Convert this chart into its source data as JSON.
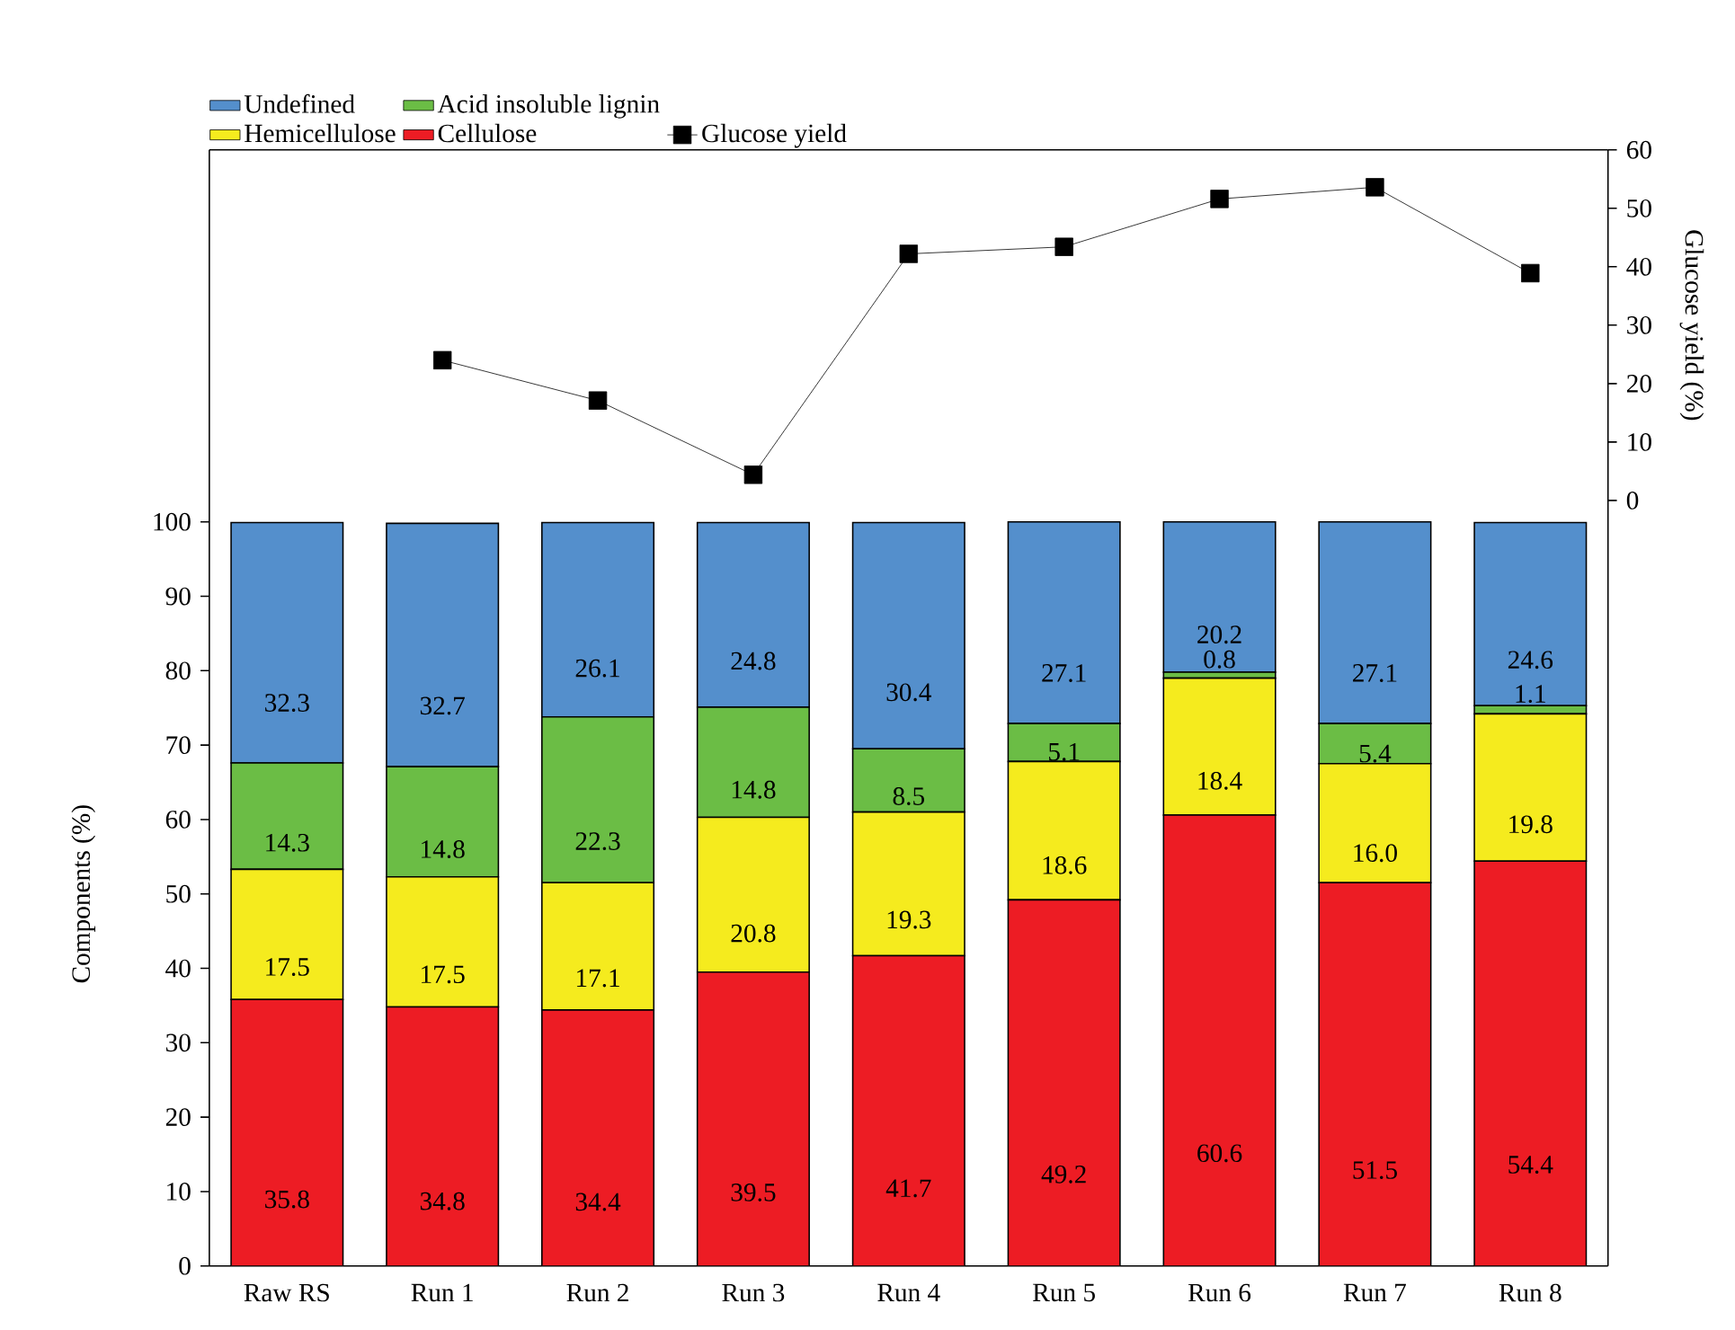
{
  "chart_data": {
    "type": "bar",
    "stacked": true,
    "legend": "top",
    "ylabel": "Components (%)",
    "y2label": "Glucose yield (%)",
    "categories": [
      "Raw RS",
      "Run 1",
      "Run 2",
      "Run 3",
      "Run 4",
      "Run 5",
      "Run 6",
      "Run 7",
      "Run 8"
    ],
    "ylim": [
      0,
      150
    ],
    "yticks": [
      0,
      10,
      20,
      30,
      40,
      50,
      60,
      70,
      80,
      90,
      100
    ],
    "y2lim": [
      -131,
      60
    ],
    "y2ticks": [
      0,
      10,
      20,
      30,
      40,
      50,
      60
    ],
    "series": [
      {
        "name": "Cellulose",
        "color": "#ed1c24",
        "values": [
          35.8,
          34.8,
          34.4,
          39.5,
          41.7,
          49.2,
          60.6,
          51.5,
          54.4
        ],
        "value_labels": [
          "35.8",
          "34.8",
          "34.4",
          "39.5",
          "41.7",
          "49.2",
          "60.6",
          "51.5",
          "54.4"
        ]
      },
      {
        "name": "Hemicellulose",
        "color": "#f5eb1e",
        "values": [
          17.5,
          17.5,
          17.1,
          20.8,
          19.3,
          18.6,
          18.4,
          16.0,
          19.8
        ],
        "value_labels": [
          "17.5",
          "17.5",
          "17.1",
          "20.8",
          "19.3",
          "18.6",
          "18.4",
          "16.0",
          "19.8"
        ]
      },
      {
        "name": "Acid insoluble lignin",
        "color": "#6bbd45",
        "values": [
          14.3,
          14.8,
          22.3,
          14.8,
          8.5,
          5.1,
          0.8,
          5.4,
          1.1
        ],
        "value_labels": [
          "14.3",
          "14.8",
          "22.3",
          "14.8",
          "8.5",
          "5.1",
          "0.8",
          "5.4",
          "1.1"
        ]
      },
      {
        "name": "Undefined",
        "color": "#548fcc",
        "values": [
          32.3,
          32.7,
          26.1,
          24.8,
          30.4,
          27.1,
          20.2,
          27.1,
          24.6
        ],
        "value_labels": [
          "32.3",
          "32.7",
          "26.1",
          "24.8",
          "30.4",
          "27.1",
          "20.2",
          "27.1",
          "24.6"
        ]
      },
      {
        "name": "Glucose yield",
        "type": "line",
        "axis": "y2",
        "color": "#000000",
        "marker": "square",
        "line_style": "solid",
        "values": [
          null,
          24.0,
          17.1,
          4.4,
          42.2,
          43.4,
          51.6,
          53.6,
          38.9
        ]
      }
    ]
  }
}
